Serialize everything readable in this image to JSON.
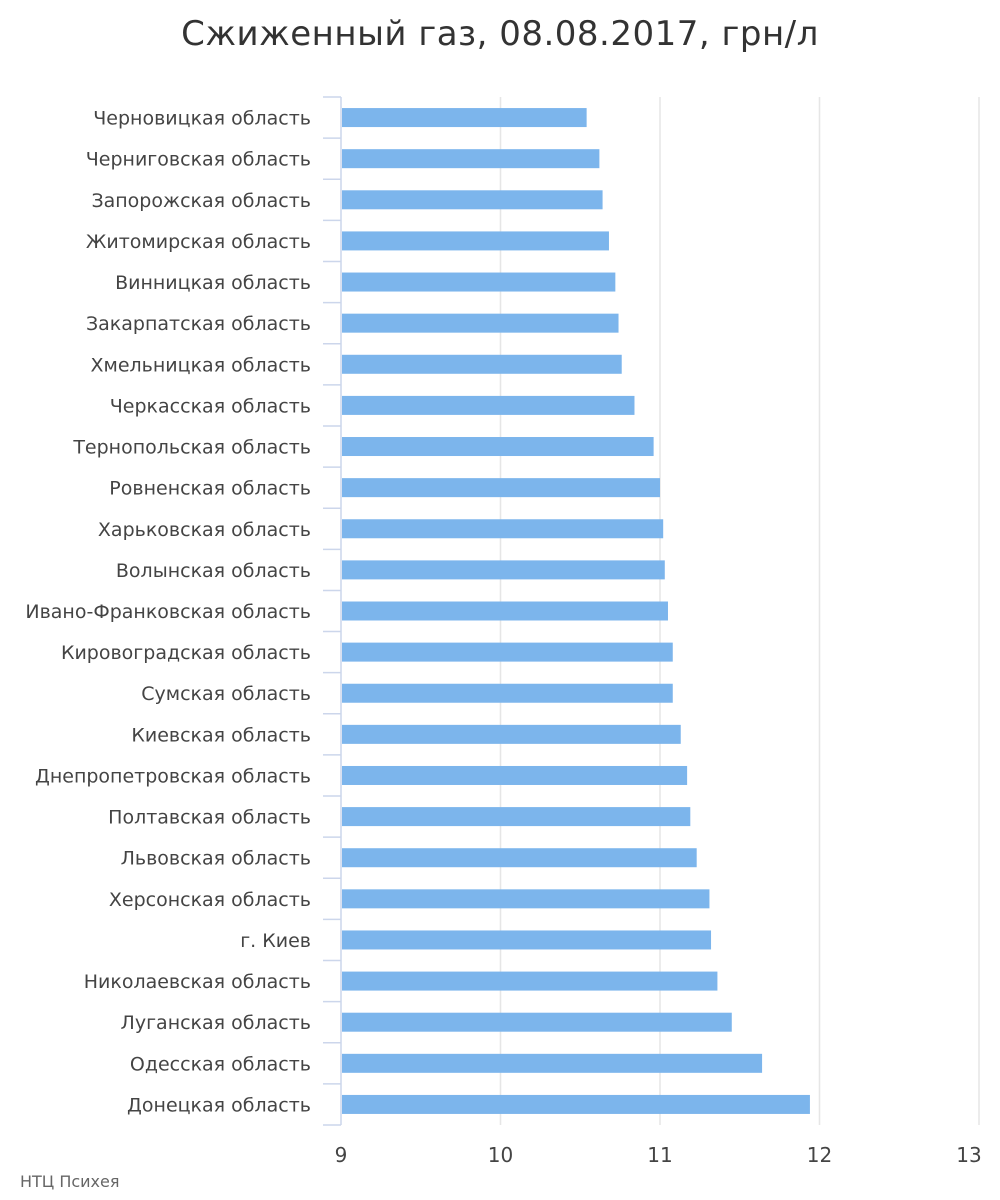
{
  "chart_data": {
    "type": "bar",
    "orientation": "horizontal",
    "title": "Сжиженный газ, 08.08.2017, грн/л",
    "categories": [
      "Черновицкая область",
      "Черниговская область",
      "Запорожская область",
      "Житомирская область",
      "Винницкая область",
      "Закарпатская область",
      "Хмельницкая область",
      "Черкасская область",
      "Тернопольская область",
      "Ровненская область",
      "Харьковская область",
      "Волынская область",
      "Ивано-Франковская область",
      "Кировоградская область",
      "Сумская область",
      "Киевская область",
      "Днепропетровская область",
      "Полтавская область",
      "Львовская область",
      "Херсонская область",
      "г. Киев",
      "Николаевская область",
      "Луганская область",
      "Одесская область",
      "Донецкая область"
    ],
    "values": [
      10.54,
      10.62,
      10.64,
      10.68,
      10.72,
      10.74,
      10.76,
      10.84,
      10.96,
      11.0,
      11.02,
      11.03,
      11.05,
      11.08,
      11.08,
      11.13,
      11.17,
      11.19,
      11.23,
      11.31,
      11.32,
      11.36,
      11.45,
      11.64,
      11.94
    ],
    "xlim": [
      9,
      13
    ],
    "xticks": [
      "9",
      "10",
      "11",
      "12",
      "13"
    ],
    "xlabel": "",
    "ylabel": "",
    "grid": "vertical",
    "bar_color": "#7cb5ec"
  },
  "footer": {
    "source": "НТЦ Психея"
  }
}
